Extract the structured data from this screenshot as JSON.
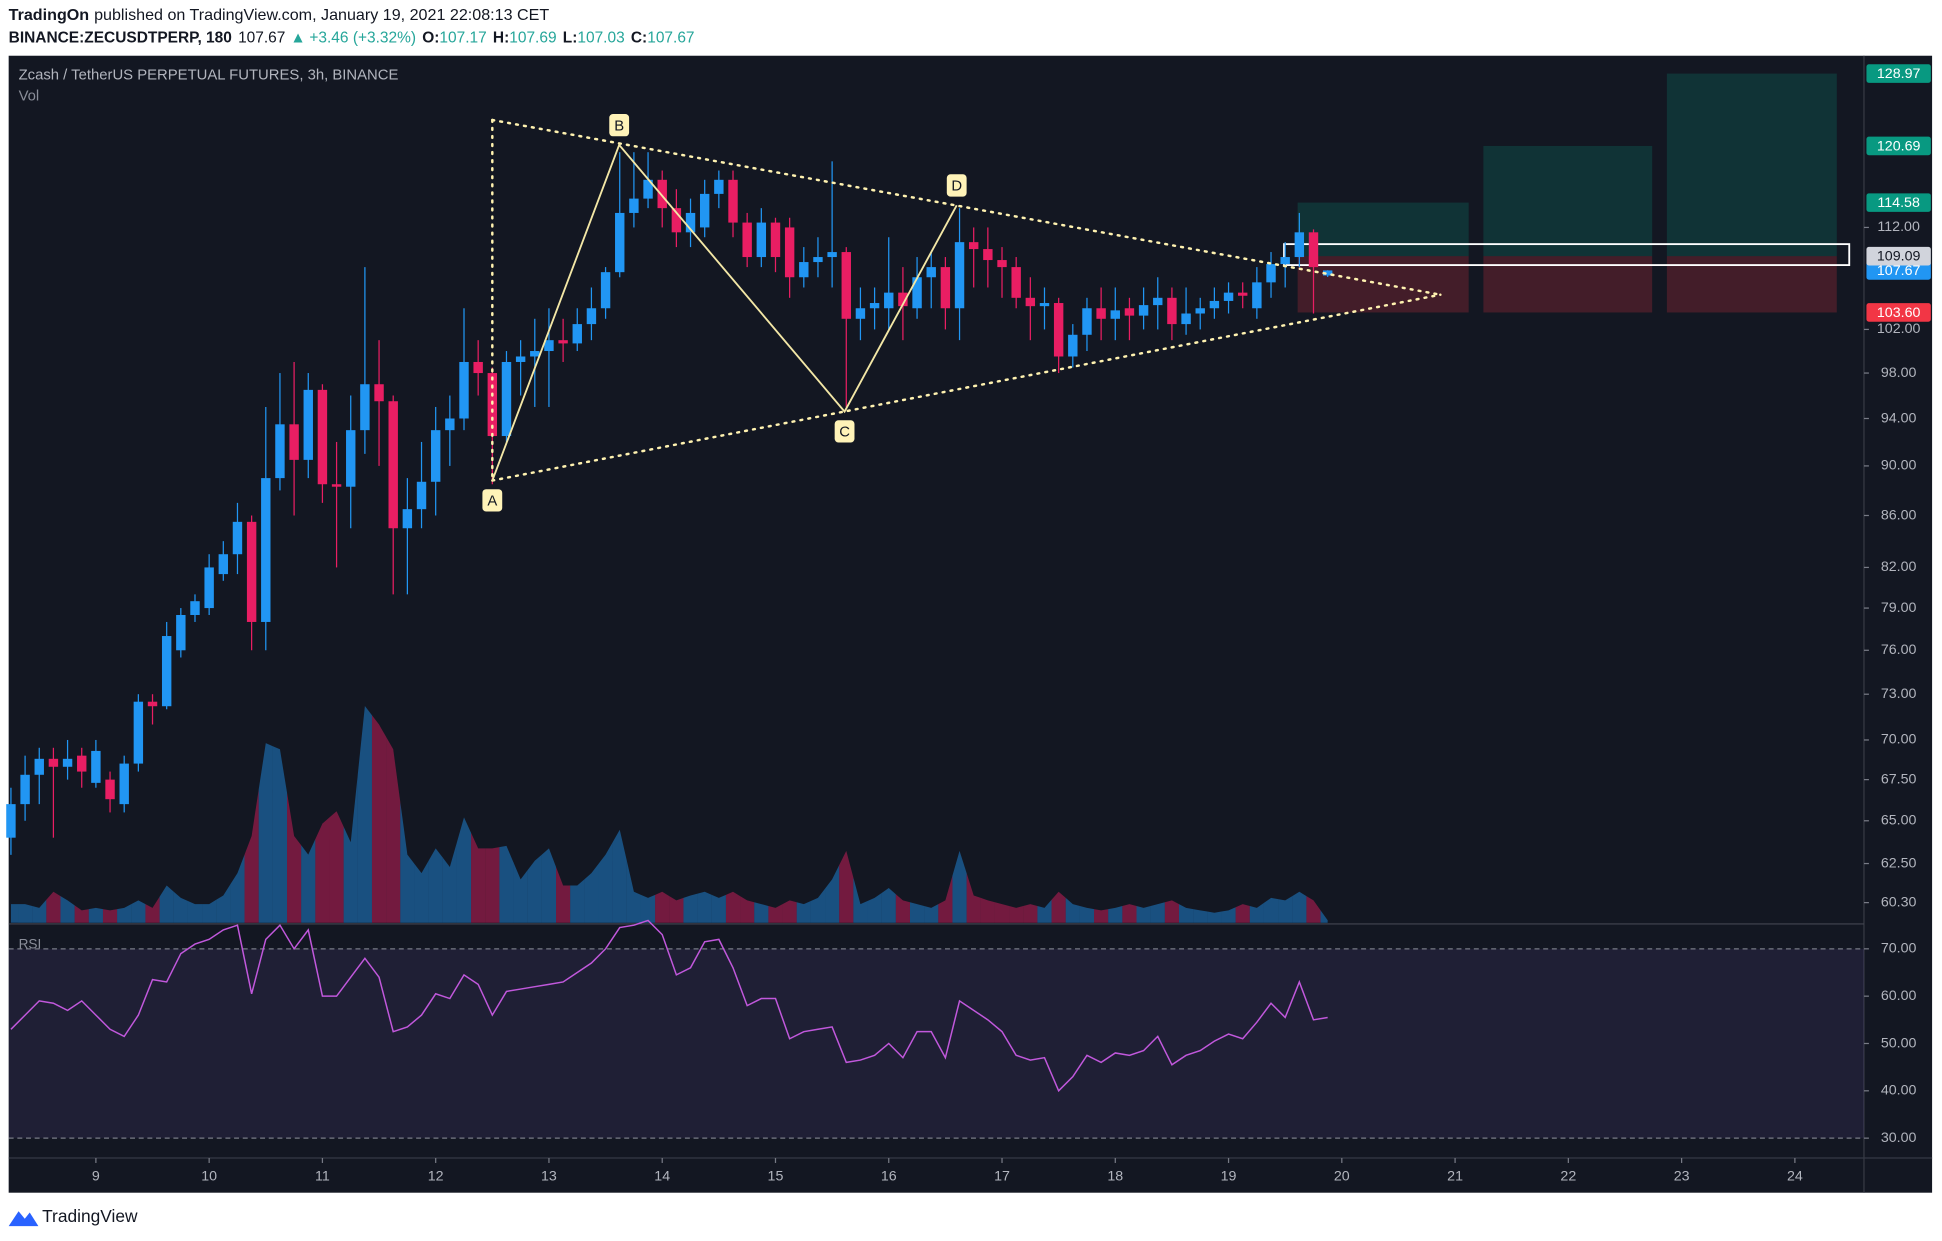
{
  "header": {
    "author": "TradingOn",
    "published": "published on TradingView.com, January 19, 2021 22:08:13 CET",
    "symbol": "BINANCE:ZECUSDTPERP, 180",
    "last": 107.67,
    "arrow": "▲",
    "change": "+3.46 (+3.32%)",
    "o_label": "O:",
    "open": 107.17,
    "h_label": "H:",
    "high": 107.69,
    "l_label": "L:",
    "low": 107.03,
    "c_label": "C:",
    "close": 107.67
  },
  "chart_data": {
    "type": "candlestick",
    "title": "Zcash / TetherUS PERPETUAL FUTURES, 3h, BINANCE",
    "volume_label": "Vol",
    "rsi_label": "RSI",
    "up_color": "#2196f3",
    "down_color": "#e91e63",
    "rsi_color": "#c158dc",
    "x": [
      8.25,
      8.375,
      8.5,
      8.625,
      8.75,
      8.875,
      9,
      9.125,
      9.25,
      9.375,
      9.5,
      9.625,
      9.75,
      9.875,
      10,
      10.125,
      10.25,
      10.375,
      10.5,
      10.625,
      10.75,
      10.875,
      11,
      11.125,
      11.25,
      11.375,
      11.5,
      11.625,
      11.75,
      11.875,
      12,
      12.125,
      12.25,
      12.375,
      12.5,
      12.625,
      12.75,
      12.875,
      13,
      13.125,
      13.25,
      13.375,
      13.5,
      13.625,
      13.75,
      13.875,
      14,
      14.125,
      14.25,
      14.375,
      14.5,
      14.625,
      14.75,
      14.875,
      15,
      15.125,
      15.25,
      15.375,
      15.5,
      15.625,
      15.75,
      15.875,
      16,
      16.125,
      16.25,
      16.375,
      16.5,
      16.625,
      16.75,
      16.875,
      17,
      17.125,
      17.25,
      17.375,
      17.5,
      17.625,
      17.75,
      17.875,
      18,
      18.125,
      18.25,
      18.375,
      18.5,
      18.625,
      18.75,
      18.875,
      19,
      19.125,
      19.25,
      19.375,
      19.5,
      19.625,
      19.75,
      19.875
    ],
    "open": [
      64,
      66,
      67.8,
      68.8,
      68.3,
      69,
      67.3,
      67.5,
      66,
      68.5,
      72.5,
      72.2,
      76,
      78.5,
      79,
      81.5,
      83,
      85.5,
      78,
      89,
      93.5,
      90.5,
      96.5,
      88.5,
      88.3,
      93,
      97,
      95.5,
      85,
      86.5,
      88.7,
      93,
      94,
      99,
      98,
      92.5,
      99,
      99.5,
      100,
      101,
      100.7,
      102.5,
      104,
      107.5,
      113.5,
      115,
      117,
      114,
      111.5,
      112,
      115.5,
      117,
      112.5,
      109,
      112.5,
      112,
      107,
      108.5,
      109,
      109.5,
      103,
      104,
      104,
      105.5,
      104,
      107,
      108,
      104,
      110.5,
      109.8,
      108.7,
      108,
      105,
      104.2,
      104.5,
      99.5,
      101.5,
      104,
      103,
      104,
      103.3,
      104.3,
      105,
      102.5,
      103.5,
      104,
      104.7,
      105.5,
      104,
      106.5,
      108.3,
      109,
      111.5,
      107.17
    ],
    "high": [
      67,
      69,
      69.5,
      69.5,
      70,
      69.5,
      70,
      68,
      69,
      73,
      73,
      78,
      79,
      80,
      83,
      84,
      87,
      86,
      95,
      98,
      99,
      98,
      97,
      92,
      96,
      108,
      101,
      96,
      89,
      92,
      95,
      96,
      104,
      101,
      98.5,
      100,
      101,
      103,
      104,
      103,
      104,
      106,
      108,
      120,
      120,
      120,
      118,
      116,
      115,
      117,
      118,
      118,
      113.5,
      114,
      113,
      113,
      110,
      111,
      119,
      110,
      106,
      106,
      111,
      108,
      109,
      109.5,
      109,
      114,
      112,
      112,
      110,
      109,
      107,
      106,
      105,
      102.5,
      105,
      106,
      106,
      105,
      106,
      107,
      106,
      106,
      105,
      106,
      106.5,
      106.5,
      108,
      109.5,
      110.5,
      113.5,
      111.8,
      107.69
    ],
    "low": [
      63,
      65,
      66,
      64,
      67.5,
      67,
      67,
      65.5,
      65.5,
      68,
      71,
      72,
      75.5,
      78,
      78.5,
      81,
      81.5,
      76,
      76,
      88,
      86,
      89,
      87,
      82,
      85,
      91,
      90,
      80,
      80,
      85,
      86,
      90,
      93,
      96,
      88.5,
      92,
      96,
      95,
      95,
      99,
      100,
      101,
      103,
      107,
      112,
      114,
      112,
      110,
      110,
      111,
      114,
      111,
      108,
      108,
      107.5,
      105,
      106,
      107,
      106,
      95,
      101,
      102,
      102,
      101,
      103,
      104,
      102,
      101,
      106,
      106,
      105,
      104,
      101,
      102,
      98,
      98.5,
      100,
      101,
      101,
      101,
      102,
      102,
      101,
      101.5,
      102,
      103,
      103.5,
      104,
      103,
      105,
      106,
      108,
      103.5,
      107.03
    ],
    "close": [
      66,
      67.8,
      68.8,
      68.3,
      68.8,
      68,
      69.3,
      66.3,
      68.5,
      72.5,
      72.2,
      77,
      78.5,
      79.5,
      82,
      83,
      85.5,
      78,
      89,
      93.5,
      90.5,
      96.5,
      88.5,
      88.3,
      93,
      97,
      95.5,
      85,
      86.5,
      88.7,
      93,
      94,
      99,
      98,
      92.5,
      99,
      99.5,
      100,
      101,
      100.7,
      102.5,
      104,
      107.5,
      113.5,
      115,
      117,
      114,
      111.5,
      113.5,
      115.5,
      117,
      112.5,
      109,
      112.5,
      109,
      107,
      108.5,
      109,
      109.5,
      103,
      104,
      104.5,
      105.5,
      104.2,
      107,
      108,
      104,
      110.5,
      109.8,
      108.7,
      108,
      105,
      104.2,
      104.5,
      99.5,
      101.5,
      104,
      103,
      103.8,
      103.3,
      104.3,
      105,
      102.5,
      103.5,
      104,
      104.7,
      105.5,
      105.2,
      106.5,
      108.3,
      109,
      111.5,
      108,
      {
        "value": 107.67,
        "label": "107.67"
      }
    ],
    "volume": [
      15,
      15,
      12,
      25,
      18,
      10,
      12,
      10,
      12,
      18,
      12,
      30,
      20,
      15,
      15,
      22,
      40,
      70,
      145,
      140,
      70,
      55,
      80,
      90,
      65,
      175,
      160,
      140,
      55,
      40,
      60,
      45,
      85,
      60,
      60,
      62,
      35,
      50,
      60,
      30,
      30,
      40,
      55,
      75,
      25,
      20,
      25,
      18,
      22,
      25,
      20,
      25,
      18,
      15,
      12,
      18,
      15,
      20,
      35,
      58,
      15,
      20,
      28,
      18,
      15,
      12,
      18,
      58,
      22,
      18,
      15,
      12,
      15,
      12,
      25,
      15,
      12,
      10,
      12,
      15,
      12,
      15,
      18,
      12,
      10,
      8,
      10,
      15,
      12,
      20,
      18,
      25,
      18,
      2
    ],
    "rsi": [
      53,
      56,
      59,
      58.5,
      57,
      59,
      56,
      53,
      51.5,
      56,
      63.5,
      63,
      69,
      71,
      72,
      74,
      75,
      60.5,
      72,
      75,
      70,
      74,
      60,
      60,
      64,
      68,
      64,
      52.5,
      53.5,
      56,
      60.5,
      59.5,
      64.5,
      62.5,
      56,
      61,
      61.5,
      62,
      62.5,
      63,
      65,
      67,
      70,
      74.5,
      75,
      76,
      73,
      64.5,
      66,
      71.5,
      72,
      66,
      58,
      59.5,
      59.5,
      51,
      52.5,
      53,
      53.5,
      46,
      46.5,
      47.5,
      50,
      47,
      52.5,
      52.5,
      47,
      59,
      57,
      55,
      52.5,
      47.5,
      46.5,
      47,
      40,
      43,
      47.5,
      46,
      48,
      47.5,
      48.5,
      51.5,
      45.5,
      47.5,
      48.5,
      50.5,
      52,
      51,
      54.5,
      58.5,
      55.5,
      63,
      55,
      55.5
    ],
    "xlim": [
      8.23,
      24.61
    ],
    "xticks": [
      9,
      10,
      11,
      12,
      13,
      14,
      15,
      16,
      17,
      18,
      19,
      20,
      21,
      22,
      23,
      24
    ],
    "ylim": [
      59.2,
      131.1
    ],
    "log_scale": true,
    "yticks": [
      {
        "value": 112,
        "label": "112.00"
      },
      {
        "value": 102,
        "label": "102.00"
      },
      {
        "value": 98,
        "label": "98.00"
      },
      {
        "value": 94,
        "label": "94.00"
      },
      {
        "value": 90,
        "label": "90.00"
      },
      {
        "value": 86,
        "label": "86.00"
      },
      {
        "value": 82,
        "label": "82.00"
      },
      {
        "value": 79,
        "label": "79.00"
      },
      {
        "value": 76,
        "label": "76.00"
      },
      {
        "value": 73,
        "label": "73.00"
      },
      {
        "value": 70,
        "label": "70.00"
      },
      {
        "value": 67.5,
        "label": "67.50"
      },
      {
        "value": 65,
        "label": "65.00"
      },
      {
        "value": 62.5,
        "label": "62.50"
      },
      {
        "value": 60.3,
        "label": "60.30"
      }
    ],
    "vlim": [
      0,
      200
    ],
    "rsi_lim": [
      25.8,
      75
    ],
    "rsi_ticks": [
      {
        "value": 70,
        "label": "70.00"
      },
      {
        "value": 60,
        "label": "60.00"
      },
      {
        "value": 50,
        "label": "50.00"
      },
      {
        "value": 40,
        "label": "40.00"
      },
      {
        "value": 30,
        "label": "30.00"
      }
    ],
    "rsi_bands": [
      30,
      70
    ],
    "pattern": [
      {
        "label": "A",
        "x": 12.5,
        "y": 88.8
      },
      {
        "label": "B",
        "x": 13.62,
        "y": 120.8
      },
      {
        "label": "C",
        "x": 15.61,
        "y": 94.6
      },
      {
        "label": "D",
        "x": 16.6,
        "y": 114.3
      }
    ],
    "triangle": {
      "top": {
        "x": 12.5,
        "y": 123.6
      },
      "bottom": {
        "x": 12.5,
        "y": 88.8
      },
      "apex": {
        "x": 20.87,
        "y": 105.3
      }
    },
    "zone": {
      "x": [
        19.49,
        24.48
      ],
      "y": [
        108.2,
        110.3
      ]
    },
    "entry": 109.09,
    "stop": {
      "value": 103.6,
      "label": "103.60"
    },
    "positions": [
      {
        "target": 114.58,
        "x": [
          19.61,
          21.12
        ]
      },
      {
        "target": 120.69,
        "x": [
          21.25,
          22.74
        ]
      },
      {
        "target": 128.97,
        "x": [
          22.87,
          24.37
        ]
      }
    ]
  },
  "footer": "TradingView"
}
